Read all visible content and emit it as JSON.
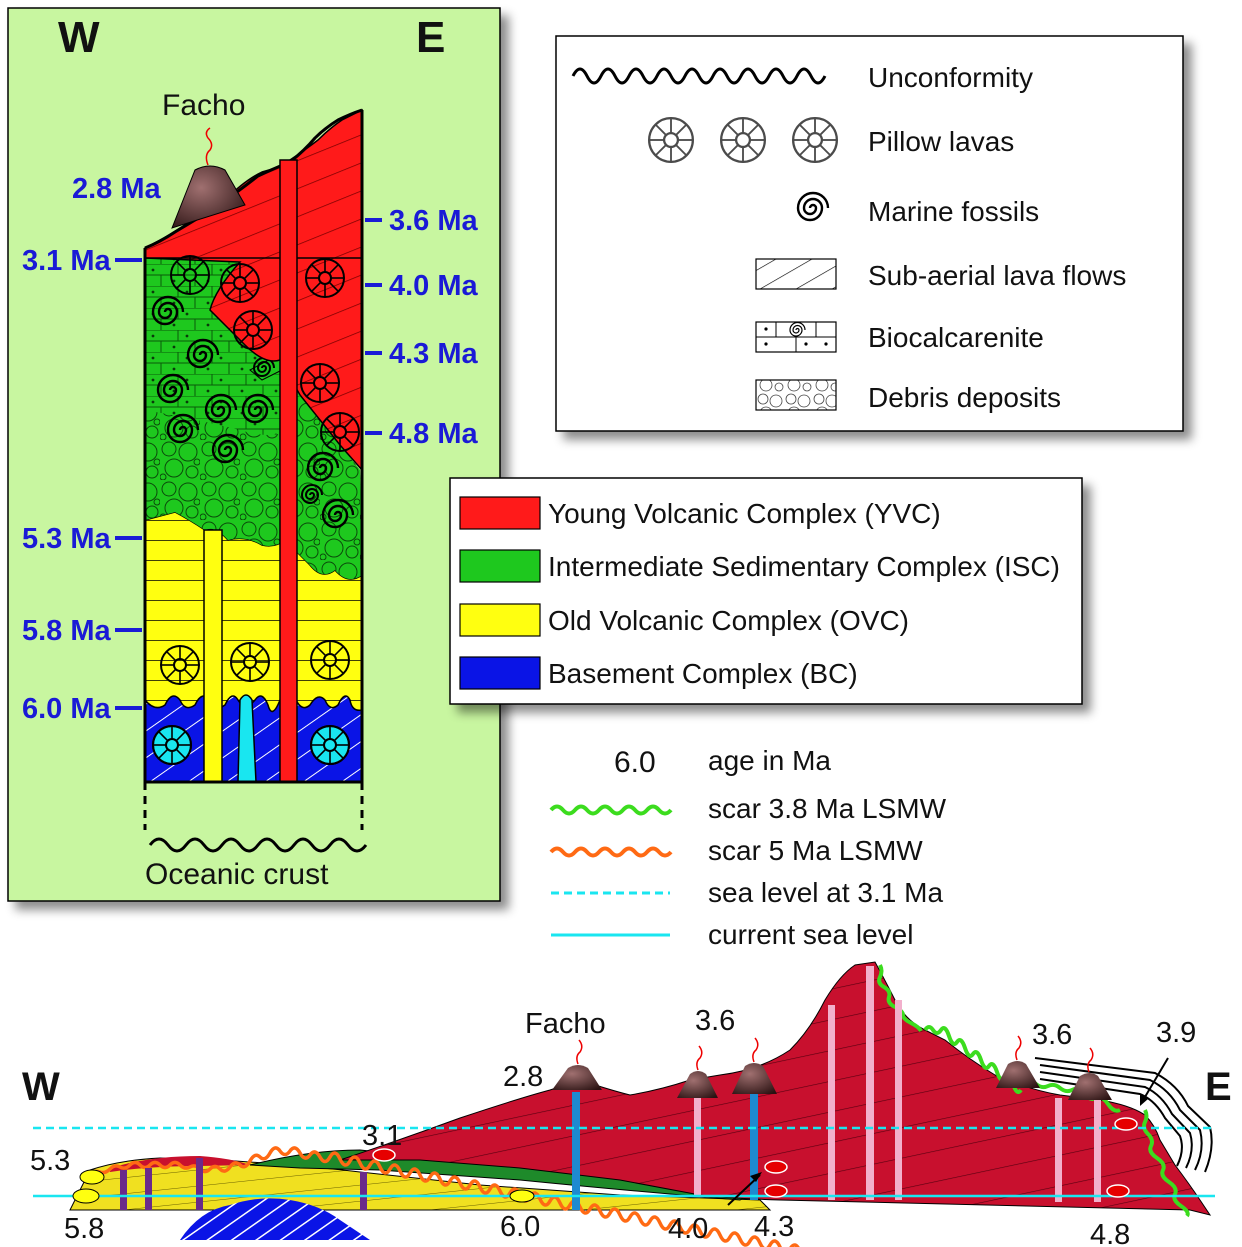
{
  "colors": {
    "yvc": "#ff1a1a",
    "isc": "#1ec81e",
    "ovc": "#ffff10",
    "bc": "#0a14e6",
    "panel": "#c8f6a0",
    "age_blue": "#1a1ad6",
    "dark_red": "#c8102e",
    "cyan": "#19e6f0",
    "scar_green": "#3cdc1e",
    "scar_orange": "#ff6a14"
  },
  "column": {
    "west": "W",
    "east": "E",
    "volcano": "Facho",
    "volcano_age": "2.8 Ma",
    "base_label": "Oceanic crust",
    "ages_left": [
      "3.1 Ma",
      "5.3 Ma",
      "5.8 Ma",
      "6.0 Ma"
    ],
    "ages_right": [
      "3.6 Ma",
      "4.0 Ma",
      "4.3 Ma",
      "4.8 Ma"
    ]
  },
  "symbol_legend": [
    {
      "icon": "unconformity-icon",
      "label": "Unconformity"
    },
    {
      "icon": "pillow-lava-icon",
      "label": "Pillow lavas"
    },
    {
      "icon": "marine-fossil-icon",
      "label": "Marine fossils"
    },
    {
      "icon": "lava-flow-icon",
      "label": "Sub-aerial lava flows"
    },
    {
      "icon": "biocalcarenite-icon",
      "label": "Biocalcarenite"
    },
    {
      "icon": "debris-icon",
      "label": "Debris deposits"
    }
  ],
  "complex_legend": [
    {
      "label": "Young Volcanic Complex (YVC)",
      "color": "#ff1a1a"
    },
    {
      "label": "Intermediate Sedimentary Complex (ISC)",
      "color": "#1ec81e"
    },
    {
      "label": "Old Volcanic Complex (OVC)",
      "color": "#ffff10"
    },
    {
      "label": "Basement Complex (BC)",
      "color": "#0a14e6"
    }
  ],
  "line_legend": {
    "age_example": "6.0",
    "age_label": "age in Ma",
    "items": [
      {
        "label": "scar 3.8 Ma LSMW",
        "color": "#3cdc1e",
        "style": "wavy"
      },
      {
        "label": "scar 5 Ma LSMW",
        "color": "#ff6a14",
        "style": "wavy"
      },
      {
        "label": "sea level at 3.1 Ma",
        "color": "#19e6f0",
        "style": "dashed"
      },
      {
        "label": "current sea level",
        "color": "#19e6f0",
        "style": "solid"
      }
    ]
  },
  "section": {
    "west": "W",
    "east": "E",
    "volcano_name": "Facho",
    "labels": [
      "2.8",
      "3.6",
      "3.6",
      "3.9",
      "3.1",
      "5.3",
      "5.8",
      "6.0",
      "4.0",
      "4.3",
      "4.8"
    ]
  }
}
